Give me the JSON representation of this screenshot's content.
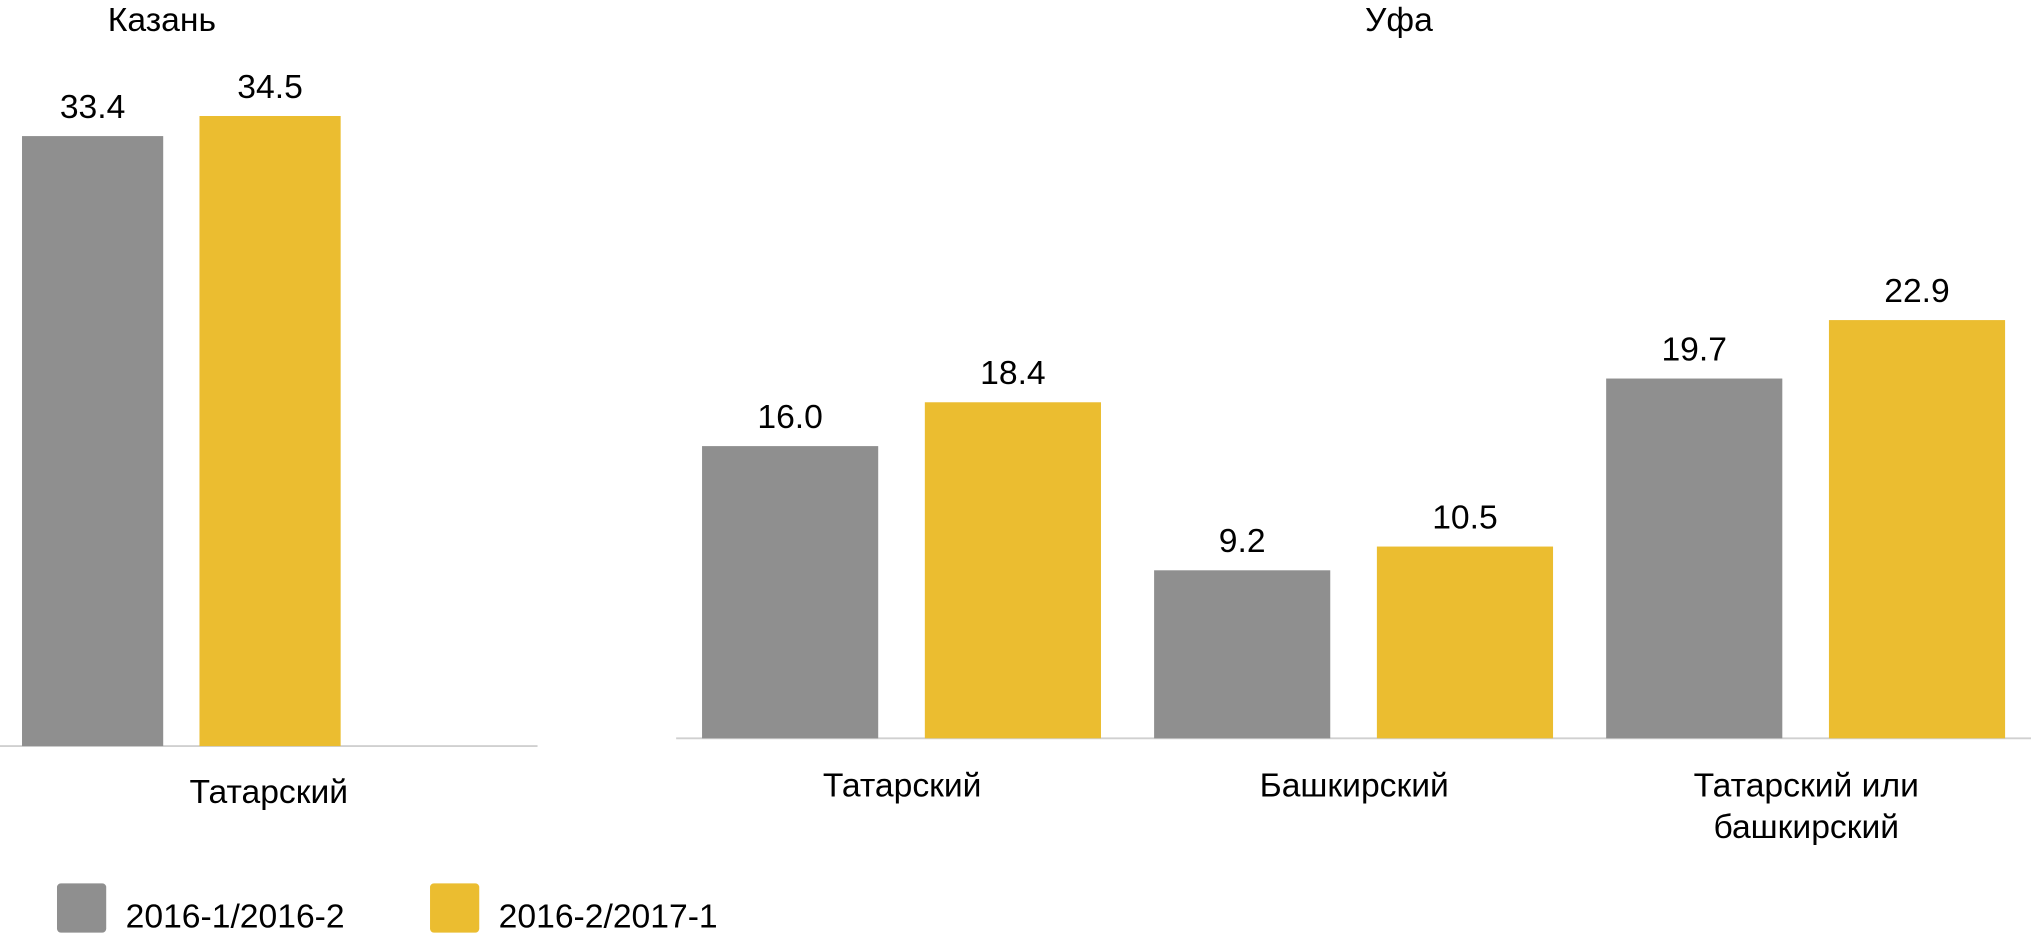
{
  "chart_data": [
    {
      "type": "bar",
      "title": "Казань",
      "categories": [
        "Татарский"
      ],
      "series": [
        {
          "name": "2016-1/2016-2",
          "color": "#8f8f8f",
          "values": [
            33.4
          ]
        },
        {
          "name": "2016-2/2017-1",
          "color": "#ebbd30",
          "values": [
            34.5
          ]
        }
      ]
    },
    {
      "type": "bar",
      "title": "Уфа",
      "categories": [
        "Татарский",
        "Башкирский",
        "Татарский или башкирский"
      ],
      "series": [
        {
          "name": "2016-1/2016-2",
          "color": "#8f8f8f",
          "values": [
            16.0,
            9.2,
            19.7
          ],
          "value_labels": [
            "16.0",
            "9.2",
            "19.7"
          ]
        },
        {
          "name": "2016-2/2017-1",
          "color": "#ebbd30",
          "values": [
            18.4,
            10.5,
            22.9
          ],
          "value_labels": [
            "18.4",
            "10.5",
            "22.9"
          ]
        }
      ]
    }
  ]
}
